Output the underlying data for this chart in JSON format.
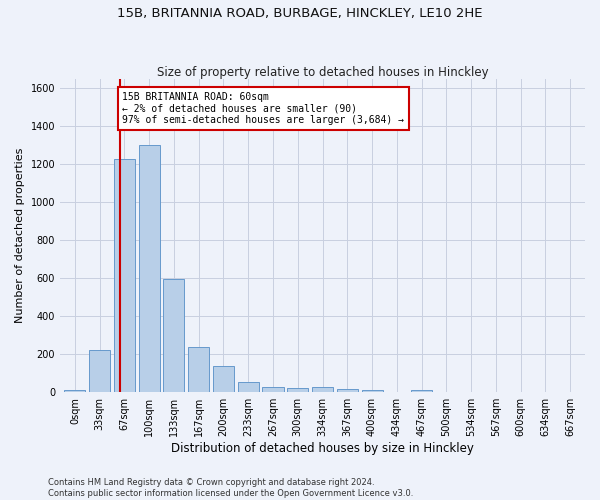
{
  "title1": "15B, BRITANNIA ROAD, BURBAGE, HINCKLEY, LE10 2HE",
  "title2": "Size of property relative to detached houses in Hinckley",
  "xlabel": "Distribution of detached houses by size in Hinckley",
  "ylabel": "Number of detached properties",
  "footer1": "Contains HM Land Registry data © Crown copyright and database right 2024.",
  "footer2": "Contains public sector information licensed under the Open Government Licence v3.0.",
  "bar_labels": [
    "0sqm",
    "33sqm",
    "67sqm",
    "100sqm",
    "133sqm",
    "167sqm",
    "200sqm",
    "233sqm",
    "267sqm",
    "300sqm",
    "334sqm",
    "367sqm",
    "400sqm",
    "434sqm",
    "467sqm",
    "500sqm",
    "534sqm",
    "567sqm",
    "600sqm",
    "634sqm",
    "667sqm"
  ],
  "bar_values": [
    10,
    220,
    1225,
    1300,
    595,
    240,
    140,
    55,
    25,
    20,
    25,
    15,
    10,
    0,
    10,
    0,
    0,
    0,
    0,
    0,
    0
  ],
  "bar_color": "#b8cfe8",
  "bar_edge_color": "#6699cc",
  "ylim": [
    0,
    1650
  ],
  "yticks": [
    0,
    200,
    400,
    600,
    800,
    1000,
    1200,
    1400,
    1600
  ],
  "property_line_x": 1.82,
  "annotation_title": "15B BRITANNIA ROAD: 60sqm",
  "annotation_line1": "← 2% of detached houses are smaller (90)",
  "annotation_line2": "97% of semi-detached houses are larger (3,684) →",
  "annotation_box_color": "#ffffff",
  "annotation_box_edge": "#cc0000",
  "vline_color": "#cc0000",
  "bg_color": "#eef2fa",
  "grid_color": "#c8cfe0",
  "title1_fontsize": 9.5,
  "title2_fontsize": 8.5,
  "xlabel_fontsize": 8.5,
  "ylabel_fontsize": 8,
  "tick_fontsize": 7,
  "footer_fontsize": 6,
  "annot_fontsize": 7
}
